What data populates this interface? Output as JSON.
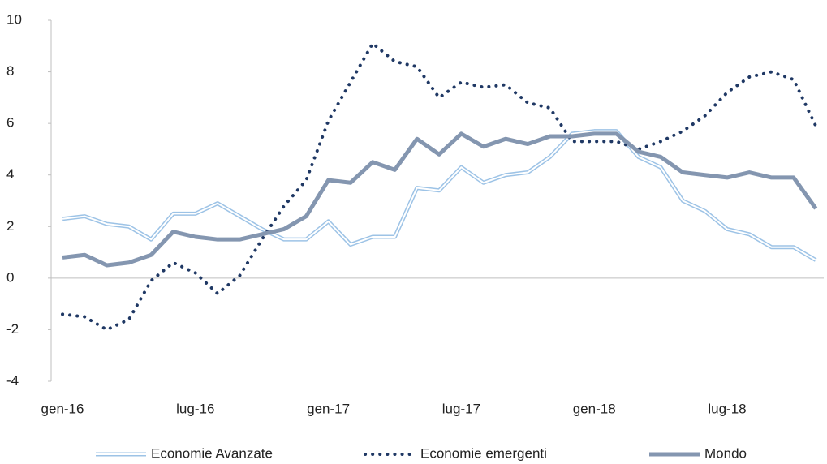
{
  "chart_data": {
    "type": "line",
    "categories": [
      "gen-16",
      null,
      null,
      null,
      null,
      null,
      "lug-16",
      null,
      null,
      null,
      null,
      null,
      "gen-17",
      null,
      null,
      null,
      null,
      null,
      "lug-17",
      null,
      null,
      null,
      null,
      null,
      "gen-18",
      null,
      null,
      null,
      null,
      null,
      "lug-18",
      null,
      null,
      null,
      null
    ],
    "series": [
      {
        "name": "Economie Avanzate",
        "color": "#9dc3e6",
        "style": "double",
        "values": [
          2.3,
          2.4,
          2.1,
          2.0,
          1.5,
          2.5,
          2.5,
          2.9,
          2.4,
          1.9,
          1.5,
          1.5,
          2.2,
          1.3,
          1.6,
          1.6,
          3.5,
          3.4,
          4.3,
          3.7,
          4.0,
          4.1,
          4.7,
          5.6,
          5.7,
          5.7,
          4.7,
          4.3,
          3.0,
          2.6,
          1.9,
          1.7,
          1.2,
          1.2,
          0.7
        ]
      },
      {
        "name": "Economie emergenti",
        "color": "#1f3864",
        "style": "dotted",
        "values": [
          -1.4,
          -1.5,
          -2.0,
          -1.6,
          -0.1,
          0.6,
          0.2,
          -0.6,
          0.1,
          1.5,
          2.8,
          3.8,
          6.1,
          7.6,
          9.1,
          8.4,
          8.2,
          7.0,
          7.6,
          7.4,
          7.5,
          6.8,
          6.6,
          5.3,
          5.3,
          5.3,
          5.0,
          5.3,
          5.7,
          6.3,
          7.2,
          7.8,
          8.0,
          7.7,
          5.9
        ]
      },
      {
        "name": "Mondo",
        "color": "#8496b0",
        "style": "thick",
        "values": [
          0.8,
          0.9,
          0.5,
          0.6,
          0.9,
          1.8,
          1.6,
          1.5,
          1.5,
          1.7,
          1.9,
          2.4,
          3.8,
          3.7,
          4.5,
          4.2,
          5.4,
          4.8,
          5.6,
          5.1,
          5.4,
          5.2,
          5.5,
          5.5,
          5.6,
          5.6,
          4.9,
          4.7,
          4.1,
          4.0,
          3.9,
          4.1,
          3.9,
          3.9,
          2.7
        ]
      }
    ],
    "ylim": [
      -4,
      10
    ],
    "yticks": [
      -4,
      -2,
      0,
      2,
      4,
      6,
      8,
      10
    ],
    "legend": "bottom"
  }
}
